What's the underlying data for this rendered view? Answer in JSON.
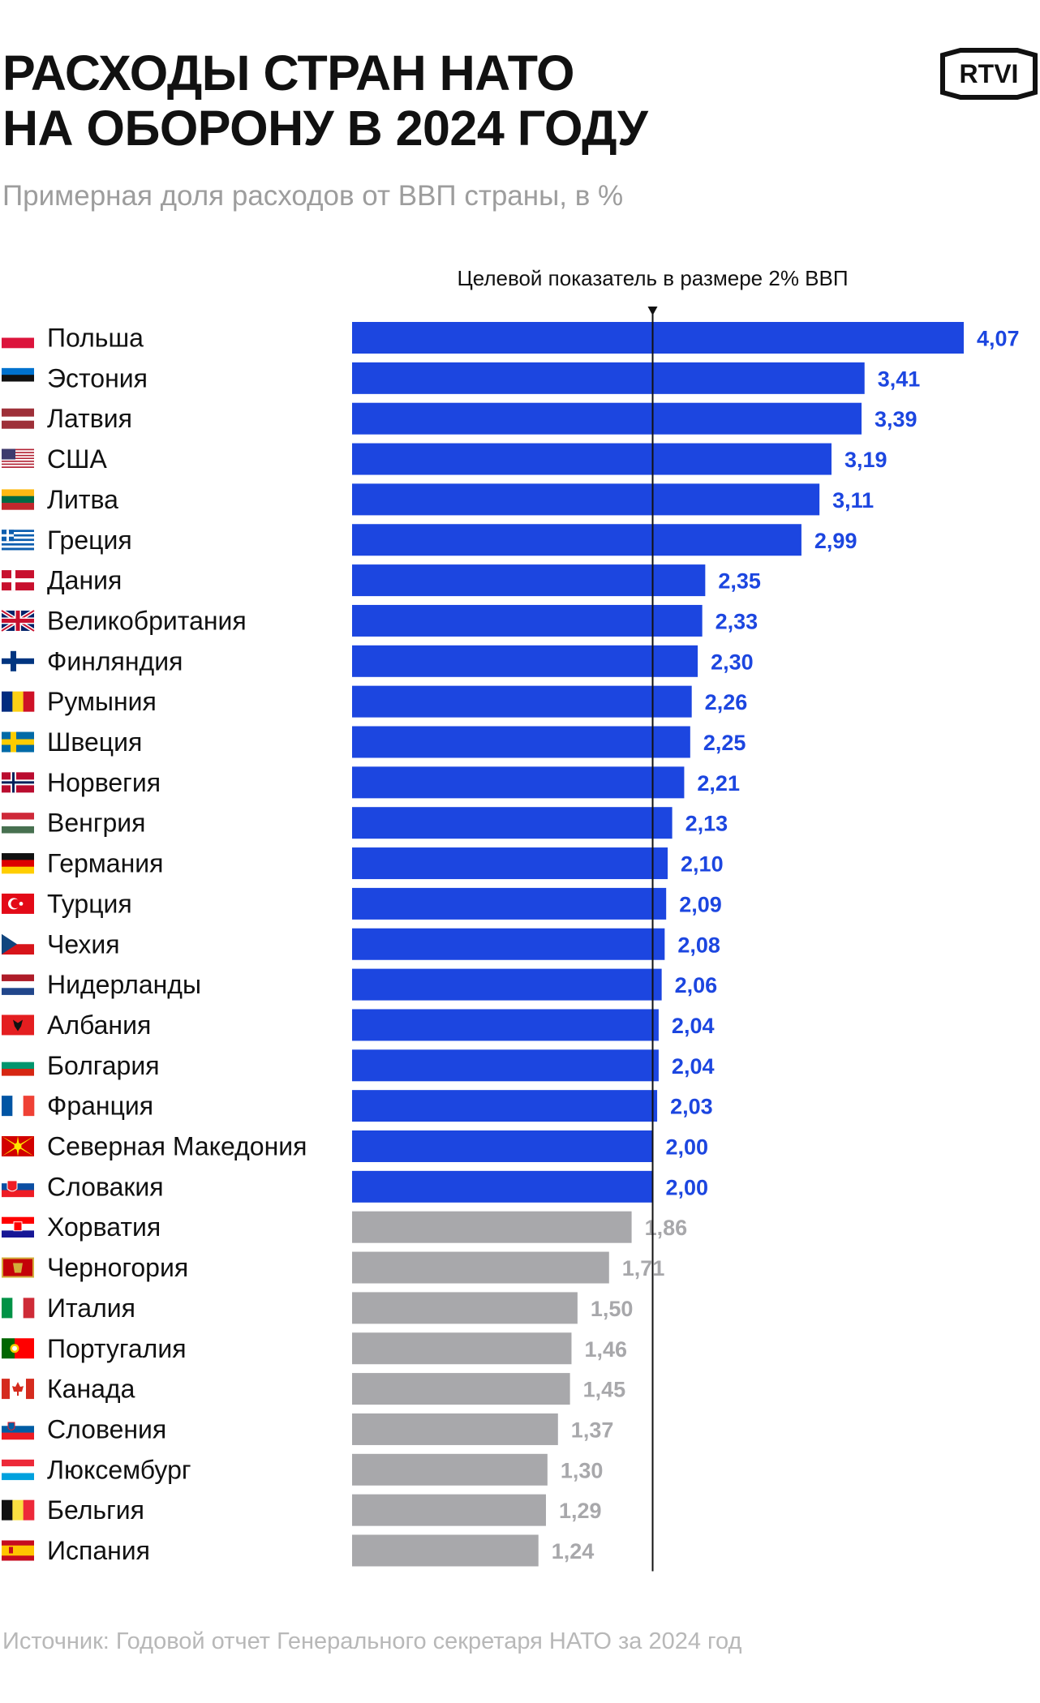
{
  "title_line1": "РАСХОДЫ СТРАН НАТО",
  "title_line2": "НА ОБОРОНУ В 2024 ГОДУ",
  "subtitle": "Примерная доля расходов от ВВП страны, в %",
  "logo_text": "RTVI",
  "source": "Источник: Годовой отчет Генерального секретаря НАТО за 2024 год",
  "colors": {
    "above_target": "#1c46e0",
    "below_target": "#a8a8ab",
    "label_above": "#1c46e0",
    "label_below": "#a8a8ab",
    "target_line": "#111111"
  },
  "chart_data": {
    "type": "bar",
    "orientation": "horizontal",
    "title": "РАСХОДЫ СТРАН НАТО НА ОБОРОНУ В 2024 ГОДУ",
    "subtitle": "Примерная доля расходов от ВВП страны, в %",
    "target": {
      "value": 2.0,
      "label": "Целевой показатель в размере 2% ВВП"
    },
    "xlim": [
      0,
      4.07
    ],
    "categories": [
      "Польша",
      "Эстония",
      "Латвия",
      "США",
      "Литва",
      "Греция",
      "Дания",
      "Великобритания",
      "Финляндия",
      "Румыния",
      "Швеция",
      "Норвегия",
      "Венгрия",
      "Германия",
      "Турция",
      "Чехия",
      "Нидерланды",
      "Албания",
      "Болгария",
      "Франция",
      "Северная Македония",
      "Словакия",
      "Хорватия",
      "Черногория",
      "Италия",
      "Португалия",
      "Канада",
      "Словения",
      "Люксембург",
      "Бельгия",
      "Испания"
    ],
    "values": [
      4.07,
      3.41,
      3.39,
      3.19,
      3.11,
      2.99,
      2.35,
      2.33,
      2.3,
      2.26,
      2.25,
      2.21,
      2.13,
      2.1,
      2.09,
      2.08,
      2.06,
      2.04,
      2.04,
      2.03,
      2.0,
      2.0,
      1.86,
      1.71,
      1.5,
      1.46,
      1.45,
      1.37,
      1.3,
      1.29,
      1.24
    ],
    "value_labels": [
      "4,07",
      "3,41",
      "3,39",
      "3,19",
      "3,11",
      "2,99",
      "2,35",
      "2,33",
      "2,30",
      "2,26",
      "2,25",
      "2,21",
      "2,13",
      "2,10",
      "2,09",
      "2,08",
      "2,06",
      "2,04",
      "2,04",
      "2,03",
      "2,00",
      "2,00",
      "1,86",
      "1,71",
      "1,50",
      "1,46",
      "1,45",
      "1,37",
      "1,30",
      "1,29",
      "1,24"
    ],
    "flags": [
      "flag-poland",
      "flag-estonia",
      "flag-latvia",
      "flag-usa",
      "flag-lithuania",
      "flag-greece",
      "flag-denmark",
      "flag-uk",
      "flag-finland",
      "flag-romania",
      "flag-sweden",
      "flag-norway",
      "flag-hungary",
      "flag-germany",
      "flag-turkey",
      "flag-czechia",
      "flag-netherlands",
      "flag-albania",
      "flag-bulgaria",
      "flag-france",
      "flag-north-macedonia",
      "flag-slovakia",
      "flag-croatia",
      "flag-montenegro",
      "flag-italy",
      "flag-portugal",
      "flag-canada",
      "flag-slovenia",
      "flag-luxembourg",
      "flag-belgium",
      "flag-spain"
    ]
  }
}
